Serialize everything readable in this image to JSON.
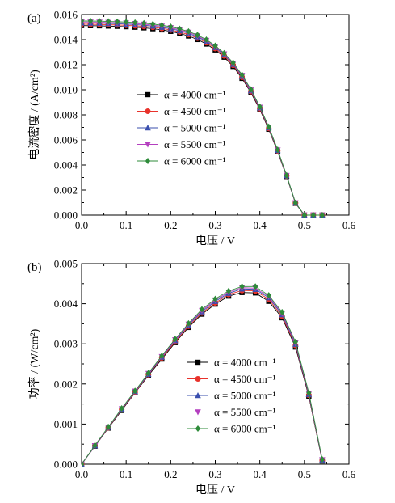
{
  "chart_data": [
    {
      "type": "line",
      "panel_label": "(a)",
      "xlabel": "电压 / V",
      "ylabel": "电流密度 / (A/cm²)",
      "xlim": [
        0.0,
        0.6
      ],
      "ylim": [
        0.0,
        0.016
      ],
      "xticks": [
        "0.0",
        "0.1",
        "0.2",
        "0.3",
        "0.4",
        "0.5",
        "0.6"
      ],
      "yticks": [
        "0.000",
        "0.002",
        "0.004",
        "0.006",
        "0.008",
        "0.010",
        "0.012",
        "0.014",
        "0.016"
      ],
      "grid": false,
      "legend_position": "center-left",
      "x": [
        0.0,
        0.02,
        0.04,
        0.06,
        0.08,
        0.1,
        0.12,
        0.14,
        0.16,
        0.18,
        0.2,
        0.22,
        0.24,
        0.26,
        0.28,
        0.3,
        0.32,
        0.34,
        0.36,
        0.38,
        0.4,
        0.42,
        0.44,
        0.46,
        0.48,
        0.5,
        0.52,
        0.54
      ],
      "series": [
        {
          "name": "α = 4000 cm⁻¹",
          "marker": "square",
          "color": "#000000",
          "values": [
            0.01512,
            0.01511,
            0.0151,
            0.01508,
            0.01506,
            0.01503,
            0.01499,
            0.01494,
            0.01487,
            0.01478,
            0.01466,
            0.0145,
            0.01429,
            0.01401,
            0.01365,
            0.01318,
            0.0126,
            0.01186,
            0.01091,
            0.00977,
            0.00842,
            0.00685,
            0.00506,
            0.00308,
            0.00094,
            0.0,
            0.0,
            0.0
          ]
        },
        {
          "name": "α = 4500 cm⁻¹",
          "marker": "circle",
          "color": "#e8322b",
          "values": [
            0.01523,
            0.01522,
            0.01521,
            0.01519,
            0.01517,
            0.01514,
            0.0151,
            0.01505,
            0.01498,
            0.01489,
            0.01477,
            0.01461,
            0.0144,
            0.01412,
            0.01376,
            0.01329,
            0.0127,
            0.01196,
            0.011,
            0.00986,
            0.0085,
            0.00692,
            0.00512,
            0.00312,
            0.00096,
            0.0,
            0.0,
            0.0
          ]
        },
        {
          "name": "α = 5000 cm⁻¹",
          "marker": "triangle-up",
          "color": "#3a4fae",
          "values": [
            0.01533,
            0.01532,
            0.01531,
            0.01529,
            0.01527,
            0.01524,
            0.0152,
            0.01515,
            0.01508,
            0.01499,
            0.01487,
            0.01471,
            0.0145,
            0.01422,
            0.01386,
            0.01338,
            0.01279,
            0.01204,
            0.01108,
            0.00993,
            0.00856,
            0.00697,
            0.00516,
            0.00314,
            0.00097,
            0.0,
            0.0,
            0.0
          ]
        },
        {
          "name": "α = 5500 cm⁻¹",
          "marker": "triangle-down",
          "color": "#b43fbf",
          "values": [
            0.01541,
            0.0154,
            0.01539,
            0.01537,
            0.01535,
            0.01532,
            0.01528,
            0.01523,
            0.01516,
            0.01507,
            0.01495,
            0.01479,
            0.01458,
            0.0143,
            0.01393,
            0.01345,
            0.01286,
            0.0121,
            0.01114,
            0.00998,
            0.0086,
            0.00701,
            0.00519,
            0.00316,
            0.00098,
            0.0,
            0.0,
            0.0
          ]
        },
        {
          "name": "α = 6000 cm⁻¹",
          "marker": "diamond",
          "color": "#2e8b3a",
          "values": [
            0.01549,
            0.01548,
            0.01547,
            0.01545,
            0.01543,
            0.0154,
            0.01536,
            0.01531,
            0.01524,
            0.01515,
            0.01503,
            0.01486,
            0.01465,
            0.01437,
            0.014,
            0.01352,
            0.01292,
            0.01216,
            0.01119,
            0.01003,
            0.00865,
            0.00705,
            0.00522,
            0.00318,
            0.00099,
            0.0,
            0.0,
            0.0
          ]
        }
      ]
    },
    {
      "type": "line",
      "panel_label": "(b)",
      "xlabel": "电压 / V",
      "ylabel": "功率 / (W/cm²)",
      "xlim": [
        0.0,
        0.6
      ],
      "ylim": [
        0.0,
        0.005
      ],
      "xticks": [
        "0.0",
        "0.1",
        "0.2",
        "0.3",
        "0.4",
        "0.5",
        "0.6"
      ],
      "yticks": [
        "0.000",
        "0.001",
        "0.002",
        "0.003",
        "0.004",
        "0.005"
      ],
      "grid": false,
      "legend_position": "lower-center",
      "x": [
        0.0,
        0.03,
        0.06,
        0.09,
        0.12,
        0.15,
        0.18,
        0.21,
        0.24,
        0.27,
        0.3,
        0.33,
        0.36,
        0.39,
        0.42,
        0.45,
        0.48,
        0.51,
        0.54
      ],
      "series": [
        {
          "name": "α = 4000 cm⁻¹",
          "marker": "square",
          "color": "#000000",
          "values": [
            0.0,
            0.00045,
            0.0009,
            0.00134,
            0.00178,
            0.00221,
            0.00262,
            0.00303,
            0.00341,
            0.00374,
            0.00399,
            0.00419,
            0.00428,
            0.00427,
            0.00406,
            0.00365,
            0.00292,
            0.00169,
            8e-05
          ]
        },
        {
          "name": "α = 4500 cm⁻¹",
          "marker": "circle",
          "color": "#e8322b",
          "values": [
            0.0,
            0.00046,
            0.00091,
            0.00136,
            0.00179,
            0.00223,
            0.00265,
            0.00305,
            0.00344,
            0.00377,
            0.00402,
            0.00423,
            0.00433,
            0.00432,
            0.00411,
            0.00369,
            0.00296,
            0.00172,
            9e-05
          ]
        },
        {
          "name": "α = 5000 cm⁻¹",
          "marker": "triangle-up",
          "color": "#3a4fae",
          "values": [
            0.0,
            0.00046,
            0.00092,
            0.00137,
            0.00181,
            0.00224,
            0.00267,
            0.00308,
            0.00347,
            0.0038,
            0.00406,
            0.00426,
            0.00437,
            0.00436,
            0.00415,
            0.00373,
            0.00299,
            0.00174,
            0.0001
          ]
        },
        {
          "name": "α = 5500 cm⁻¹",
          "marker": "triangle-down",
          "color": "#b43fbf",
          "values": [
            0.0,
            0.00046,
            0.00092,
            0.00138,
            0.00182,
            0.00226,
            0.00268,
            0.0031,
            0.00349,
            0.00383,
            0.00409,
            0.00429,
            0.0044,
            0.00439,
            0.00418,
            0.00376,
            0.00302,
            0.00176,
            0.00011
          ]
        },
        {
          "name": "α = 6000 cm⁻¹",
          "marker": "diamond",
          "color": "#2e8b3a",
          "values": [
            0.0,
            0.00047,
            0.00093,
            0.00139,
            0.00183,
            0.00227,
            0.0027,
            0.00312,
            0.00351,
            0.00386,
            0.00412,
            0.00432,
            0.00443,
            0.00443,
            0.00421,
            0.00379,
            0.00305,
            0.00178,
            0.00012
          ]
        }
      ]
    }
  ]
}
